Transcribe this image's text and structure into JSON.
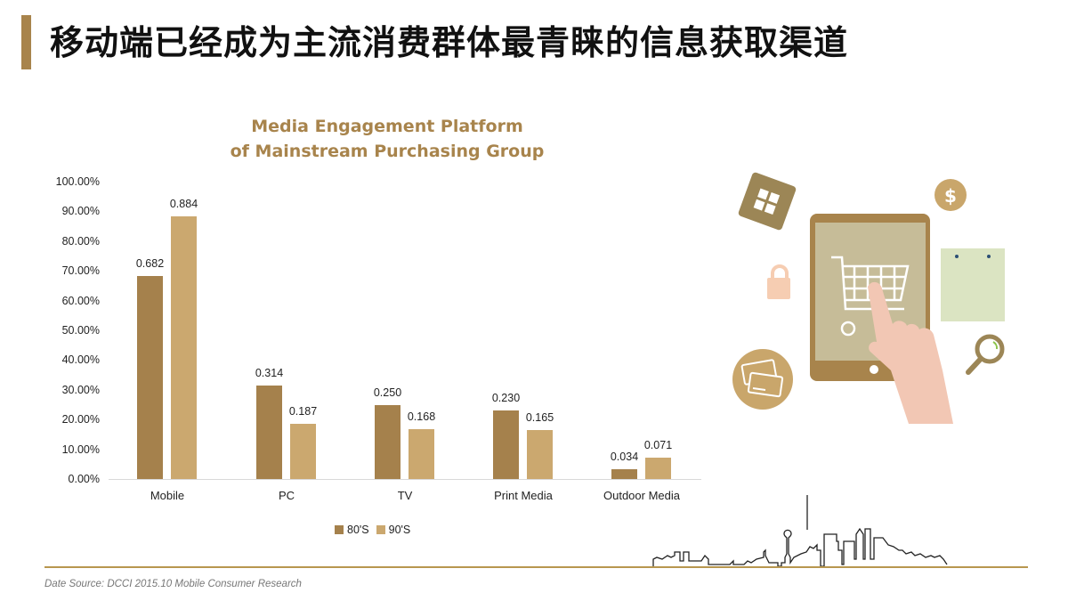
{
  "slide": {
    "title": "移动端已经成为主流消费群体最青睐的信息获取渠道",
    "accent_color": "#a8844c",
    "source_note": "Date Source:  DCCI 2015.10 Mobile Consumer Research"
  },
  "chart_data": {
    "type": "bar",
    "title": "Media Engagement Platform of Mainstream Purchasing Group",
    "title_lines": [
      "Media Engagement Platform",
      "of Mainstream Purchasing Group"
    ],
    "categories": [
      "Mobile",
      "PC",
      "TV",
      "Print Media",
      "Outdoor Media"
    ],
    "series": [
      {
        "name": "80'S",
        "color": "#a5814c",
        "values": [
          0.682,
          0.314,
          0.25,
          0.23,
          0.034
        ],
        "labels": [
          "0.682",
          "0.314",
          "0.250",
          "0.230",
          "0.034"
        ]
      },
      {
        "name": "90'S",
        "color": "#cba86f",
        "values": [
          0.884,
          0.187,
          0.168,
          0.165,
          0.071
        ],
        "labels": [
          "0.884",
          "0.187",
          "0.168",
          "0.165",
          "0.071"
        ]
      }
    ],
    "xlabel": "",
    "ylabel": "",
    "ylim": [
      0,
      1.0
    ],
    "y_ticks": [
      "0.00%",
      "10.00%",
      "20.00%",
      "30.00%",
      "40.00%",
      "50.00%",
      "60.00%",
      "70.00%",
      "80.00%",
      "90.00%",
      "100.00%"
    ],
    "grid": false,
    "legend_position": "bottom"
  },
  "illustration": {
    "icons": [
      "gift-icon",
      "dollar-coin-icon",
      "padlock-icon",
      "tablet-icon",
      "shopping-cart-icon",
      "pointing-hand-icon",
      "shopping-bag-icon",
      "magnifier-icon",
      "credit-cards-icon"
    ],
    "dollar_symbol": "$"
  }
}
